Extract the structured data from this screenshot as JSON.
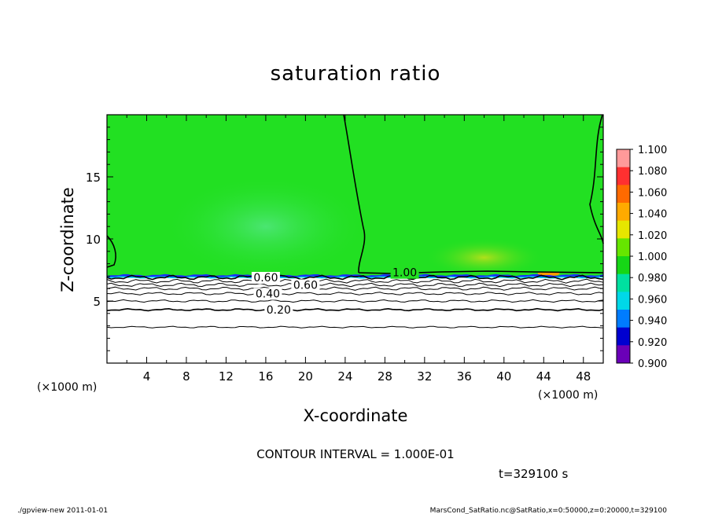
{
  "chart_data": {
    "type": "contour",
    "title": "saturation ratio",
    "xlabel": "X-coordinate",
    "ylabel": "Z-coordinate",
    "x_unit": "(×1000 m)",
    "z_unit": "(×1000 m)",
    "xlim": [
      0,
      50
    ],
    "ylim": [
      0,
      20
    ],
    "x_ticks": [
      4,
      8,
      12,
      16,
      20,
      24,
      28,
      32,
      36,
      40,
      44,
      48
    ],
    "y_ticks": [
      5,
      10,
      15
    ],
    "contour_interval": "CONTOUR INTERVAL = 1.000E-01",
    "time_label": "t=329100 s",
    "contour_labels": [
      {
        "text": "0.20",
        "x": 17.3,
        "z": 4.3
      },
      {
        "text": "0.40",
        "x": 16.2,
        "z": 5.6
      },
      {
        "text": "0.60",
        "x": 16.0,
        "z": 6.9
      },
      {
        "text": "0.60",
        "x": 20.0,
        "z": 6.3
      },
      {
        "text": "1.00",
        "x": 30.0,
        "z": 7.3
      }
    ],
    "contour_lines_z": [
      2.9,
      4.3,
      5.0,
      5.6,
      6.0,
      6.3,
      6.6,
      6.9
    ],
    "colorbar": {
      "levels": [
        "1.100",
        "1.080",
        "1.060",
        "1.040",
        "1.020",
        "1.000",
        "0.980",
        "0.960",
        "0.940",
        "0.920",
        "0.900"
      ],
      "colors": [
        "#ff9a9a",
        "#ff3030",
        "#ff6a00",
        "#ffaa00",
        "#e6e600",
        "#66e600",
        "#16d616",
        "#00e0a0",
        "#00d8e8",
        "#007cff",
        "#0000d0",
        "#6a00b8"
      ]
    },
    "field_colors": {
      "upper": "#22e022",
      "upper_patch": "#44e650",
      "near_saturation_patch": "#d0e020",
      "lower": "#ffffff",
      "interface": "#1a2cff"
    }
  },
  "footer": {
    "left": "./gpview-new   2011-01-01",
    "right": "MarsCond_SatRatio.nc@SatRatio,x=0:50000,z=0:20000,t=329100"
  }
}
